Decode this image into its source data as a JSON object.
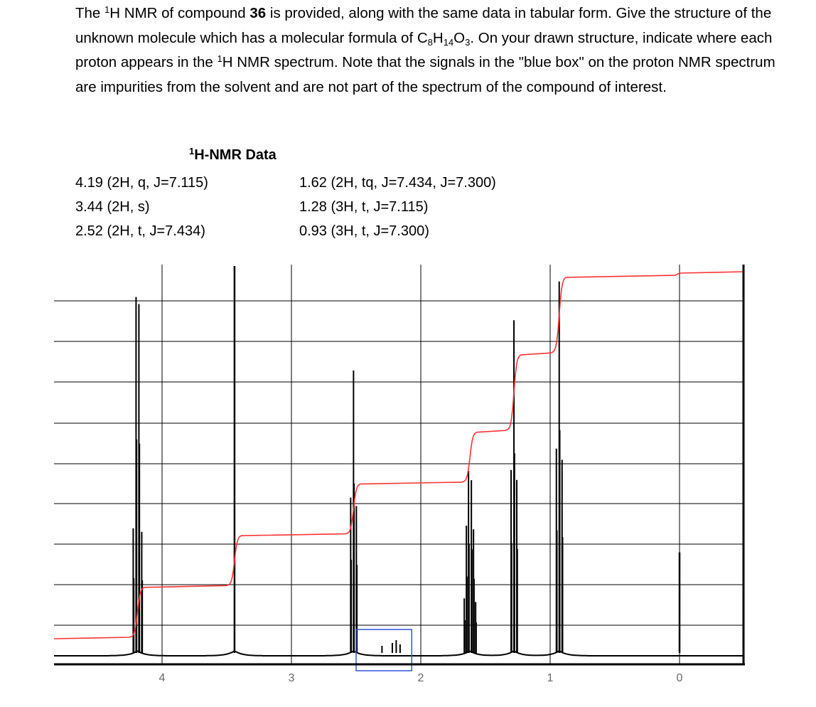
{
  "question": {
    "part1": "The ",
    "sup1": "1",
    "part2": "H NMR of compound ",
    "compound": "36",
    "part3": " is provided, along with the same data in tabular form.  Give the structure of the unknown molecule which has a molecular formula of C",
    "sub_c": "8",
    "part4": "H",
    "sub_h": "14",
    "part5": "O",
    "sub_o": "3",
    "part6": ".  On your drawn structure, indicate where each proton appears in the ",
    "sup2": "1",
    "part7": "H NMR spectrum.  Note that the signals in the \"blue box\" on the proton NMR spectrum are impurities from the solvent and are not part of the spectrum of the compound of interest."
  },
  "table": {
    "title_sup": "1",
    "title": "H-NMR Data",
    "left": [
      "4.19 (2H, q, J=7.115)",
      "3.44 (2H, s)",
      "2.52 (2H, t, J=7.434)"
    ],
    "right": [
      "1.62 (2H, tq, J=7.434, J=7.300)",
      "1.28 (3H, t, J=7.115)",
      "0.93 (3H, t, J=7.300)"
    ]
  },
  "chart_data": {
    "type": "line",
    "xlabel": "",
    "ylabel": "",
    "x_reversed": true,
    "xlim": [
      4.85,
      -0.5
    ],
    "x_ticks": [
      4,
      3,
      2,
      1,
      0
    ],
    "tick_labels": [
      "4",
      "3",
      "2",
      "1",
      "0"
    ],
    "grid": true,
    "peaks": [
      {
        "shift": 4.19,
        "height": 0.92,
        "multiplicity": "q"
      },
      {
        "shift": 3.44,
        "height": 1.0,
        "multiplicity": "s"
      },
      {
        "shift": 2.52,
        "height": 0.73,
        "multiplicity": "t"
      },
      {
        "shift": 1.62,
        "height": 0.47,
        "multiplicity": "tq"
      },
      {
        "shift": 1.28,
        "height": 0.86,
        "multiplicity": "t"
      },
      {
        "shift": 0.93,
        "height": 0.96,
        "multiplicity": "t"
      },
      {
        "shift": 0.0,
        "height": 0.26,
        "multiplicity": "s"
      }
    ],
    "integration_steps": [
      {
        "shift": 4.19,
        "protons": 2
      },
      {
        "shift": 3.44,
        "protons": 2
      },
      {
        "shift": 2.52,
        "protons": 2
      },
      {
        "shift": 1.62,
        "protons": 2
      },
      {
        "shift": 1.28,
        "protons": 3
      },
      {
        "shift": 0.93,
        "protons": 3
      }
    ],
    "impurity_box": [
      2.5,
      2.07
    ],
    "colors": {
      "spectrum": "#000000",
      "integral": "#ff3333",
      "impurity_box": "#3355dd",
      "grid": "#000000"
    }
  }
}
